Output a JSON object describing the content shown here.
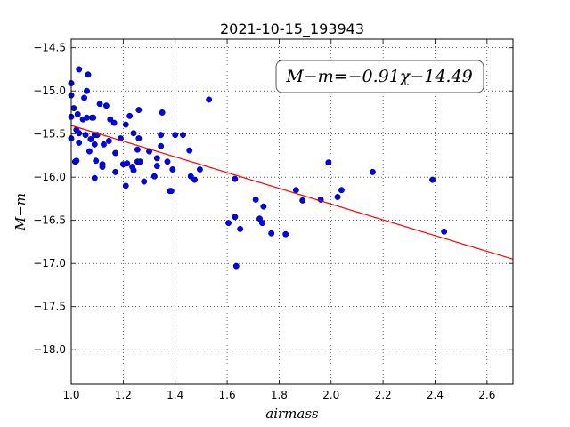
{
  "chart_data": {
    "type": "scatter",
    "title": "2021-10-15_193943",
    "x_label": "airmass",
    "y_label": "M−m",
    "annotation": "M−m=−0.91χ−14.49",
    "xlim": [
      1.0,
      2.7
    ],
    "ylim": [
      -18.4,
      -14.4
    ],
    "xticks": [
      {
        "value": 1.0,
        "label": "1.0"
      },
      1.2,
      1.4,
      1.6,
      1.8,
      {
        "value": 2.0,
        "label": "2.0"
      },
      2.2,
      2.4,
      2.6
    ],
    "yticks": [
      {
        "value": -14.5,
        "label": "−14.5"
      },
      {
        "value": -15.0,
        "label": "−15.0"
      },
      {
        "value": -15.5,
        "label": "−15.5"
      },
      {
        "value": -16.0,
        "label": "−16.0"
      },
      {
        "value": -16.5,
        "label": "−16.5"
      },
      {
        "value": -17.0,
        "label": "−17.0"
      },
      {
        "value": -17.5,
        "label": "−17.5"
      },
      {
        "value": -18.0,
        "label": "−18.0"
      }
    ],
    "grid": true,
    "series": [
      {
        "type": "scatter",
        "color": "#0000ff",
        "x": [
          1.0,
          1.03,
          1.065,
          1.06,
          1.0,
          1.01,
          1.0,
          1.025,
          1.05,
          1.06,
          1.08,
          1.085,
          1.045,
          1.11,
          1.135,
          1.15,
          1.165,
          1.225,
          1.26,
          1.35,
          1.53,
          1.21,
          1.0,
          1.02,
          1.03,
          1.055,
          1.075,
          1.09,
          1.1,
          1.03,
          1.09,
          1.125,
          1.145,
          1.19,
          1.24,
          1.26,
          1.345,
          1.4,
          1.43,
          1.07,
          1.17,
          1.255,
          1.3,
          1.345,
          1.015,
          1.02,
          1.095,
          1.12,
          1.12,
          1.17,
          1.2,
          1.215,
          1.235,
          1.24,
          1.255,
          1.265,
          1.33,
          1.33,
          1.37,
          1.39,
          1.455,
          1.495,
          1.09,
          1.21,
          1.28,
          1.32,
          1.38,
          1.385,
          1.46,
          1.475,
          1.63,
          1.71,
          1.725,
          1.74,
          1.735,
          1.77,
          1.825,
          1.865,
          1.89,
          1.96,
          1.99,
          2.025,
          2.04,
          2.16,
          2.39,
          2.435,
          1.605,
          1.63,
          1.65,
          1.635
        ],
        "values": [
          -14.91,
          -14.75,
          -14.81,
          -15.0,
          -15.05,
          -15.2,
          -15.3,
          -15.27,
          -15.08,
          -15.31,
          -15.31,
          -15.31,
          -15.33,
          -15.15,
          -15.17,
          -15.33,
          -15.37,
          -15.29,
          -15.22,
          -15.25,
          -15.1,
          -15.39,
          -15.55,
          -15.45,
          -15.49,
          -15.51,
          -15.56,
          -15.51,
          -15.51,
          -15.6,
          -15.62,
          -15.62,
          -15.58,
          -15.55,
          -15.49,
          -15.55,
          -15.51,
          -15.51,
          -15.51,
          -15.7,
          -15.72,
          -15.68,
          -15.7,
          -15.64,
          -15.82,
          -15.81,
          -15.81,
          -15.85,
          -15.88,
          -15.94,
          -15.85,
          -15.84,
          -15.88,
          -15.92,
          -15.82,
          -15.82,
          -15.78,
          -15.87,
          -15.82,
          -15.91,
          -15.69,
          -15.91,
          -16.01,
          -16.1,
          -16.05,
          -15.99,
          -16.16,
          -16.16,
          -15.99,
          -16.03,
          -16.02,
          -16.26,
          -16.48,
          -16.34,
          -16.53,
          -16.65,
          -16.66,
          -16.15,
          -16.27,
          -16.26,
          -15.83,
          -16.23,
          -16.15,
          -15.94,
          -16.03,
          -16.63,
          -16.53,
          -16.46,
          -16.6,
          -17.03
        ]
      },
      {
        "type": "line",
        "color": "#ff0000",
        "x": [
          1.0,
          2.7
        ],
        "values": [
          -15.4,
          -16.95
        ]
      }
    ]
  }
}
